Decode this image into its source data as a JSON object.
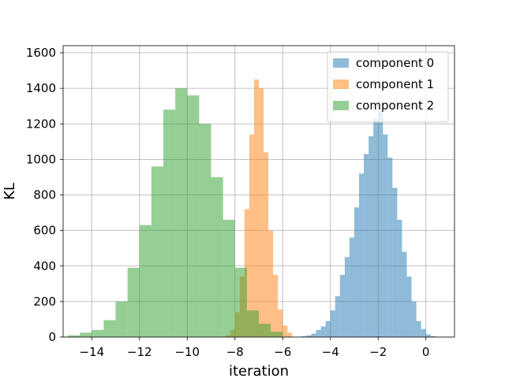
{
  "chart_data": {
    "type": "bar",
    "xlabel": "iteration",
    "ylabel": "KL",
    "xlim": [
      -15.2,
      1.2
    ],
    "ylim": [
      0,
      1640
    ],
    "xticks": [
      -14,
      -12,
      -10,
      -8,
      -6,
      -4,
      -2,
      0
    ],
    "xtick_labels": [
      "−14",
      "−12",
      "−10",
      "−8",
      "−6",
      "−4",
      "−2",
      "0"
    ],
    "yticks": [
      0,
      200,
      400,
      600,
      800,
      1000,
      1200,
      1400,
      1600
    ],
    "ytick_labels": [
      "0",
      "200",
      "400",
      "600",
      "800",
      "1000",
      "1200",
      "1400",
      "1600"
    ],
    "grid": true,
    "legend_position": "top-right",
    "series": [
      {
        "name": "component 0",
        "color": "#1f77b4",
        "alpha": 0.5,
        "bin_edges": [
          -5.4,
          -5.2,
          -5.0,
          -4.8,
          -4.6,
          -4.4,
          -4.2,
          -4.0,
          -3.8,
          -3.6,
          -3.4,
          -3.2,
          -3.0,
          -2.8,
          -2.6,
          -2.4,
          -2.2,
          -2.0,
          -1.8,
          -1.6,
          -1.4,
          -1.2,
          -1.0,
          -0.8,
          -0.6,
          -0.4,
          -0.2,
          0.0,
          0.2,
          0.4
        ],
        "counts": [
          2,
          5,
          10,
          20,
          40,
          60,
          90,
          150,
          230,
          350,
          450,
          560,
          730,
          920,
          1030,
          1130,
          1230,
          1270,
          1140,
          1010,
          840,
          660,
          480,
          340,
          200,
          90,
          45,
          15,
          5
        ]
      },
      {
        "name": "component 1",
        "color": "#ff7f0e",
        "alpha": 0.5,
        "bin_edges": [
          -8.4,
          -8.2,
          -8.0,
          -7.8,
          -7.6,
          -7.4,
          -7.2,
          -7.0,
          -6.8,
          -6.6,
          -6.4,
          -6.2,
          -6.0,
          -5.8,
          -5.6
        ],
        "counts": [
          10,
          40,
          140,
          340,
          720,
          1140,
          1450,
          1400,
          1040,
          600,
          350,
          155,
          65,
          25
        ]
      },
      {
        "name": "component 2",
        "color": "#2ca02c",
        "alpha": 0.5,
        "bin_edges": [
          -15.0,
          -14.5,
          -14.0,
          -13.5,
          -13.0,
          -12.5,
          -12.0,
          -11.5,
          -11.0,
          -10.5,
          -10.0,
          -9.5,
          -9.0,
          -8.5,
          -8.0,
          -7.5,
          -7.0,
          -6.5,
          -6.0
        ],
        "counts": [
          10,
          25,
          40,
          95,
          200,
          390,
          630,
          960,
          1280,
          1400,
          1360,
          1200,
          900,
          660,
          390,
          150,
          75,
          30
        ]
      }
    ]
  }
}
